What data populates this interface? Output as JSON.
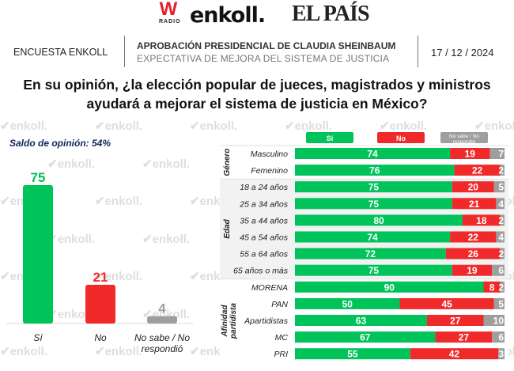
{
  "logos": {
    "w_radio": {
      "letter": "W",
      "sub": "RADIO"
    },
    "enkoll": "enkoll.",
    "el_pais": "EL PAÍS"
  },
  "header": {
    "left": "ENCUESTA ENKOLL",
    "title": "APROBACIÓN PRESIDENCIAL DE CLAUDIA SHEINBAUM",
    "subtitle": "EXPECTATIVA DE MEJORA DEL SISTEMA DE JUSTICIA",
    "date": "17 / 12 / 2024"
  },
  "question": {
    "line1": "En su opinión, ¿la elección popular de jueces, magistrados y ministros",
    "line2": "ayudará a mejorar el sistema de justicia en México?"
  },
  "saldo": "Saldo de opinión: 54%",
  "watermark": "enkoll.",
  "colors": {
    "si": "#00c35a",
    "no": "#f02a2a",
    "ns": "#9e9e9e",
    "saldo": "#13265e",
    "band": "#f2f2f2"
  },
  "chart_data": [
    {
      "type": "bar",
      "title": "Saldo de opinión: 54%",
      "categories": [
        "Sí",
        "No",
        "No sabe / No respondió"
      ],
      "values": [
        75,
        21,
        4
      ],
      "colors": [
        "#00c35a",
        "#f02a2a",
        "#9e9e9e"
      ],
      "ylim": [
        0,
        75
      ],
      "grid": false
    },
    {
      "type": "bar",
      "stacked": true,
      "orientation": "horizontal",
      "legend": {
        "position": "top",
        "entries": [
          "Sí",
          "No",
          "No sabe / No respondió"
        ]
      },
      "series_names": [
        "Sí",
        "No",
        "No sabe / No respondió"
      ],
      "groups": [
        {
          "name": "Género",
          "rows": [
            {
              "label": "Masculino",
              "values": [
                74,
                19,
                7
              ]
            },
            {
              "label": "Femenino",
              "values": [
                76,
                22,
                2
              ]
            }
          ]
        },
        {
          "name": "Edad",
          "rows": [
            {
              "label": "18 a 24 años",
              "values": [
                75,
                20,
                5
              ]
            },
            {
              "label": "25 a 34 años",
              "values": [
                75,
                21,
                4
              ]
            },
            {
              "label": "35 a 44 años",
              "values": [
                80,
                18,
                2
              ]
            },
            {
              "label": "45 a 54 años",
              "values": [
                74,
                22,
                4
              ]
            },
            {
              "label": "55 a 64 años",
              "values": [
                72,
                26,
                2
              ]
            },
            {
              "label": "65 años o más",
              "values": [
                75,
                19,
                6
              ]
            }
          ]
        },
        {
          "name": "Afinidad partidista",
          "rows": [
            {
              "label": "MORENA",
              "values": [
                90,
                8,
                2
              ]
            },
            {
              "label": "PAN",
              "values": [
                50,
                45,
                5
              ]
            },
            {
              "label": "Apartidistas",
              "values": [
                63,
                27,
                10
              ]
            },
            {
              "label": "MC",
              "values": [
                67,
                27,
                6
              ]
            },
            {
              "label": "PRI",
              "values": [
                55,
                42,
                3
              ]
            }
          ]
        }
      ],
      "xlim": [
        0,
        100
      ]
    }
  ]
}
